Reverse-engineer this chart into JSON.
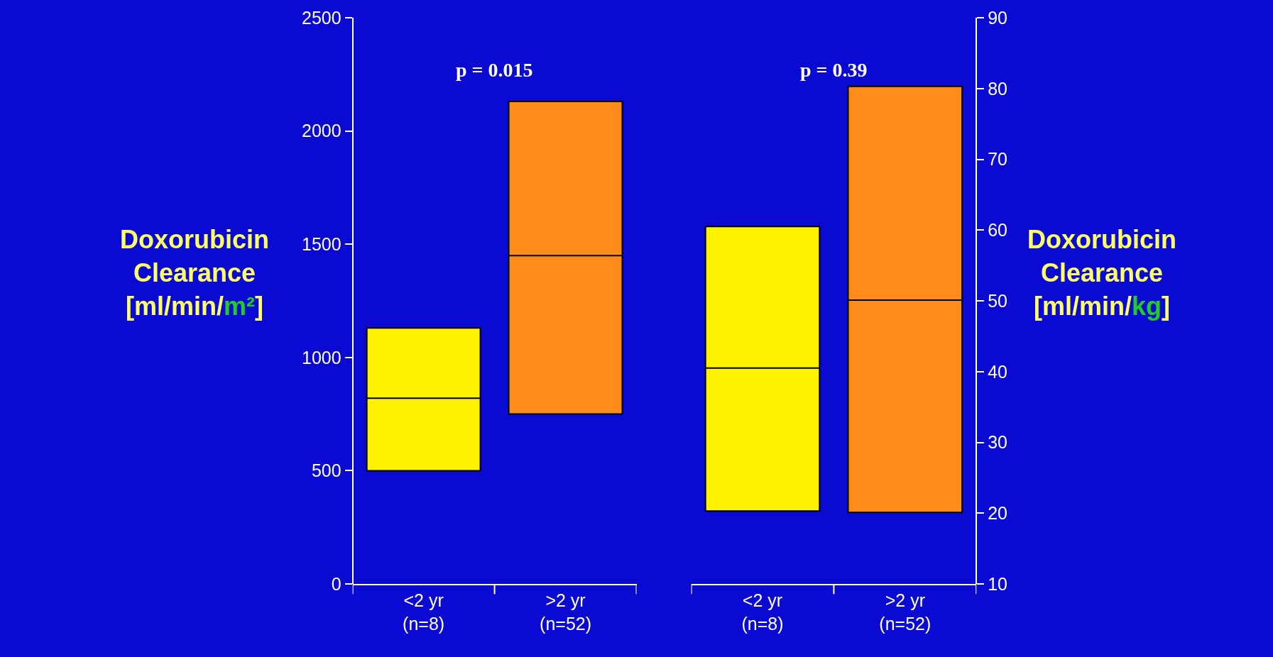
{
  "chart_data": [
    {
      "type": "box",
      "ylabel": "Doxorubicin Clearance [ml/min/m²]",
      "categories": [
        "<2 yr (n=8)",
        ">2 yr (n=52)"
      ],
      "colors": [
        "#fff200",
        "#ff8c1a"
      ],
      "ylim": [
        0,
        2500
      ],
      "yticks": [
        0,
        500,
        1000,
        1500,
        2000,
        2500
      ],
      "boxes": [
        {
          "q1": 500,
          "median": 820,
          "q3": 1130
        },
        {
          "q1": 750,
          "median": 1450,
          "q3": 2130
        }
      ],
      "annotations": [
        "p = 0.015"
      ]
    },
    {
      "type": "box",
      "y2label": "Doxorubicin Clearance [ml/min/kg]",
      "categories": [
        "<2 yr (n=8)",
        ">2 yr (n=52)"
      ],
      "y2lim": [
        10,
        90
      ],
      "y2ticks": [
        10,
        20,
        30,
        40,
        50,
        60,
        70,
        80,
        90
      ],
      "series": [
        {
          "axis": "y2",
          "colors": [
            "#fff200",
            "#ff8c1a"
          ],
          "boxes": [
            {
              "q1": 20.3,
              "median": 40.5,
              "q3": 60.5
            },
            {
              "q1": 20.1,
              "median": 50.1,
              "q3": 80.3
            }
          ]
        }
      ],
      "annotations": [
        "p = 0.39"
      ]
    }
  ]
}
